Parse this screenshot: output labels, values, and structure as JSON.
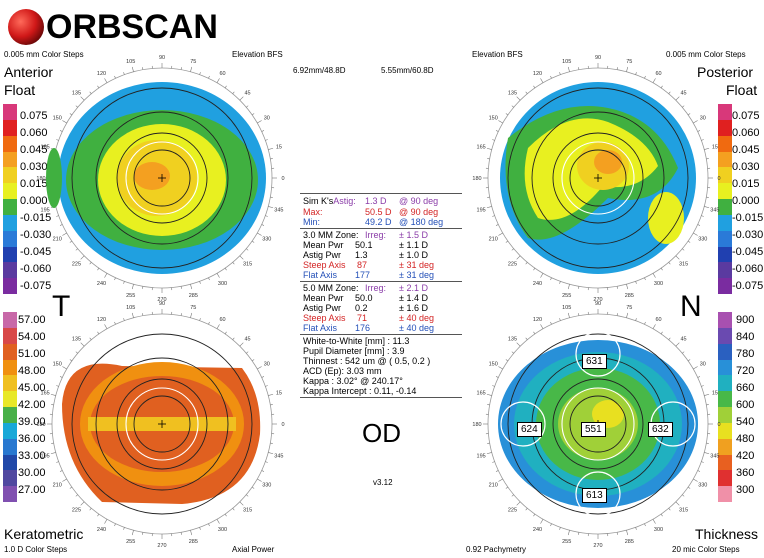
{
  "brand": {
    "name": "ORBSCAN"
  },
  "anterior": {
    "steps": "0.005 mm Color Steps",
    "label_line1": "Anterior",
    "label_line2": "Float",
    "reference": "Elevation BFS",
    "bfs": "6.92mm/48.8D",
    "side": "T",
    "scale": [
      "0.075",
      "0.060",
      "0.045",
      "0.030",
      "0.015",
      "0.000",
      "-0.015",
      "-0.030",
      "-0.045",
      "-0.060",
      "-0.075"
    ]
  },
  "posterior": {
    "steps": "0.005 mm Color Steps",
    "label_line1": "Posterior",
    "label_line2": "Float",
    "reference": "Elevation BFS",
    "bfs": "5.55mm/60.8D",
    "side": "N",
    "scale": [
      "0.075",
      "0.060",
      "0.045",
      "0.030",
      "0.015",
      "0.000",
      "-0.015",
      "-0.030",
      "-0.045",
      "-0.060",
      "-0.075"
    ]
  },
  "keratometric": {
    "label": "Keratometric",
    "steps": "1.0 D Color Steps",
    "map_type": "Axial Power",
    "scale": [
      "57.00",
      "54.00",
      "51.00",
      "48.00",
      "45.00",
      "42.00",
      "39.00",
      "36.00",
      "33.00",
      "30.00",
      "27.00"
    ]
  },
  "thickness": {
    "label": "Thickness",
    "steps": "20 mic Color Steps",
    "map_type": "0.92 Pachymetry",
    "scale": [
      "900",
      "840",
      "780",
      "720",
      "660",
      "600",
      "540",
      "480",
      "420",
      "360",
      "300"
    ],
    "points": {
      "top": "631",
      "left": "624",
      "center": "551",
      "right": "632",
      "bottom": "613"
    }
  },
  "compass": [
    "90",
    "105",
    "120",
    "135",
    "150",
    "165",
    "180",
    "195",
    "210",
    "225",
    "240",
    "255",
    "270",
    "285",
    "300",
    "315",
    "330",
    "345",
    "0",
    "15",
    "30",
    "45",
    "60",
    "75"
  ],
  "eye": "OD",
  "version": "v3.12",
  "simk": {
    "label": "Sim K's",
    "astig_label": "Astig:",
    "astig_value": "1.3 D",
    "astig_axis": "@ 90 deg",
    "max_label": "Max:",
    "max_value": "50.5 D",
    "max_axis": "@ 90 deg",
    "min_label": "Min:",
    "min_value": "49.2 D",
    "min_axis": "@ 180 deg"
  },
  "zone3": {
    "title": "3.0 MM Zone:",
    "irreg_label": "Irreg:",
    "irreg_value": "± 1.5 D",
    "rows": [
      {
        "label": "Mean Pwr",
        "value": "50.1",
        "range": "± 1.1 D"
      },
      {
        "label": "Astig Pwr",
        "value": "1.3",
        "range": "± 1.0 D"
      },
      {
        "label": "Steep Axis",
        "value": "87",
        "range": "± 31 deg"
      },
      {
        "label": "Flat Axis",
        "value": "177",
        "range": "± 31 deg"
      }
    ]
  },
  "zone5": {
    "title": "5.0 MM Zone:",
    "irreg_label": "Irreg:",
    "irreg_value": "± 2.1 D",
    "rows": [
      {
        "label": "Mean Pwr",
        "value": "50.0",
        "range": "± 1.4 D"
      },
      {
        "label": "Astig Pwr",
        "value": "0.2",
        "range": "± 1.6 D"
      },
      {
        "label": "Steep Axis",
        "value": "71",
        "range": "± 40 deg"
      },
      {
        "label": "Flat Axis",
        "value": "176",
        "range": "± 40 deg"
      }
    ]
  },
  "misc": [
    "White-to-White [mm] : 11.3",
    "Pupil Diameter [mm] :  3.9",
    "Thinnest : 542 um @ ( 0.5, 0.2 )",
    "ACD (Ep): 3.03 mm",
    "Kappa : 3.02° @ 240.17°",
    "Kappa Intercept : 0.11, -0.14"
  ],
  "colors": {
    "scale_elev": [
      "#d8387a",
      "#e02020",
      "#f06a10",
      "#f4a020",
      "#f0d020",
      "#e8f020",
      "#40b040",
      "#20a0e0",
      "#2a7ad8",
      "#2040b0",
      "#5a3aa0",
      "#7a2ca0"
    ],
    "scale_kera": [
      "#c868a8",
      "#d84848",
      "#e06020",
      "#f09010",
      "#f0c020",
      "#e8e828",
      "#48b048",
      "#18a8d8",
      "#2878d0",
      "#2048a8",
      "#5048a0",
      "#8050b0"
    ],
    "scale_thick": [
      "#a850b0",
      "#6a4ab0",
      "#2a60c0",
      "#2890d8",
      "#20b0c0",
      "#48b848",
      "#a0d038",
      "#e8e020",
      "#f0a020",
      "#e86020",
      "#e03030",
      "#f090a8"
    ]
  }
}
